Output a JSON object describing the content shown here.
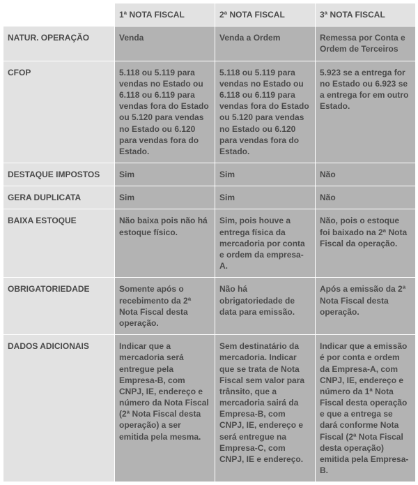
{
  "colors": {
    "header_bg": "#e2e2e2",
    "cell_bg": "#b3b3b3",
    "text": "#4a4a4a",
    "border": "#ffffff"
  },
  "columns": [
    "1ª NOTA FISCAL",
    "2ª NOTA FISCAL",
    "3ª NOTA FISCAL"
  ],
  "rows": [
    {
      "label": "NATUR. OPERAÇÃO",
      "cells": [
        "Venda",
        "Venda a Ordem",
        "Remessa por Conta e Ordem de Terceiros"
      ]
    },
    {
      "label": "CFOP",
      "cells": [
        "5.118 ou 5.119 para vendas no Estado ou 6.118 ou 6.119 para vendas fora do Estado ou 5.120 para vendas no Estado ou 6.120 para vendas fora do Estado.",
        "5.118 ou 5.119 para vendas no Estado ou 6.118 ou 6.119 para vendas fora do Estado ou 5.120 para vendas no Estado ou 6.120 para vendas fora do Estado.",
        "5.923 se a entrega for no Estado ou 6.923 se a entrega for em outro Estado."
      ]
    },
    {
      "label": "DESTAQUE IMPOSTOS",
      "cells": [
        "Sim",
        "Sim",
        "Não"
      ]
    },
    {
      "label": "GERA DUPLICATA",
      "cells": [
        "Sim",
        "Sim",
        "Não"
      ]
    },
    {
      "label": "BAIXA ESTOQUE",
      "cells": [
        "Não baixa pois não há estoque físico.",
        "Sim, pois houve a entrega física da mercadoria por conta e ordem da empresa-A.",
        "Não, pois o estoque foi baixado na 2ª Nota Fiscal da operação."
      ]
    },
    {
      "label": "OBRIGATORIEDADE",
      "cells": [
        "Somente após o recebimento da 2ª Nota Fiscal desta operação.",
        "Não há obrigatoriedade de data para emissão.",
        "Após a emissão da 2ª Nota Fiscal desta operação."
      ]
    },
    {
      "label": "DADOS ADICIONAIS",
      "cells": [
        "Indicar que a mercadoria será entregue pela Empresa-B, com CNPJ, IE, endereço e número da Nota Fiscal (2ª Nota Fiscal desta operação) a ser emitida pela mesma.",
        "Sem destinatário da mercadoria. Indicar que se trata de Nota Fiscal sem valor para trânsito, que a mercadoria sairá da Empresa-B, com CNPJ, IE, endereço e será entregue na Empresa-C, com CNPJ, IE e endereço.",
        "Indicar que a emissão é por conta e ordem da Empresa-A, com CNPJ, IE, endereço e número da 1ª Nota Fiscal desta operação e que a entrega se dará conforme Nota Fiscal (2ª Nota Fiscal desta operação) emitida pela Empresa-B."
      ]
    }
  ]
}
